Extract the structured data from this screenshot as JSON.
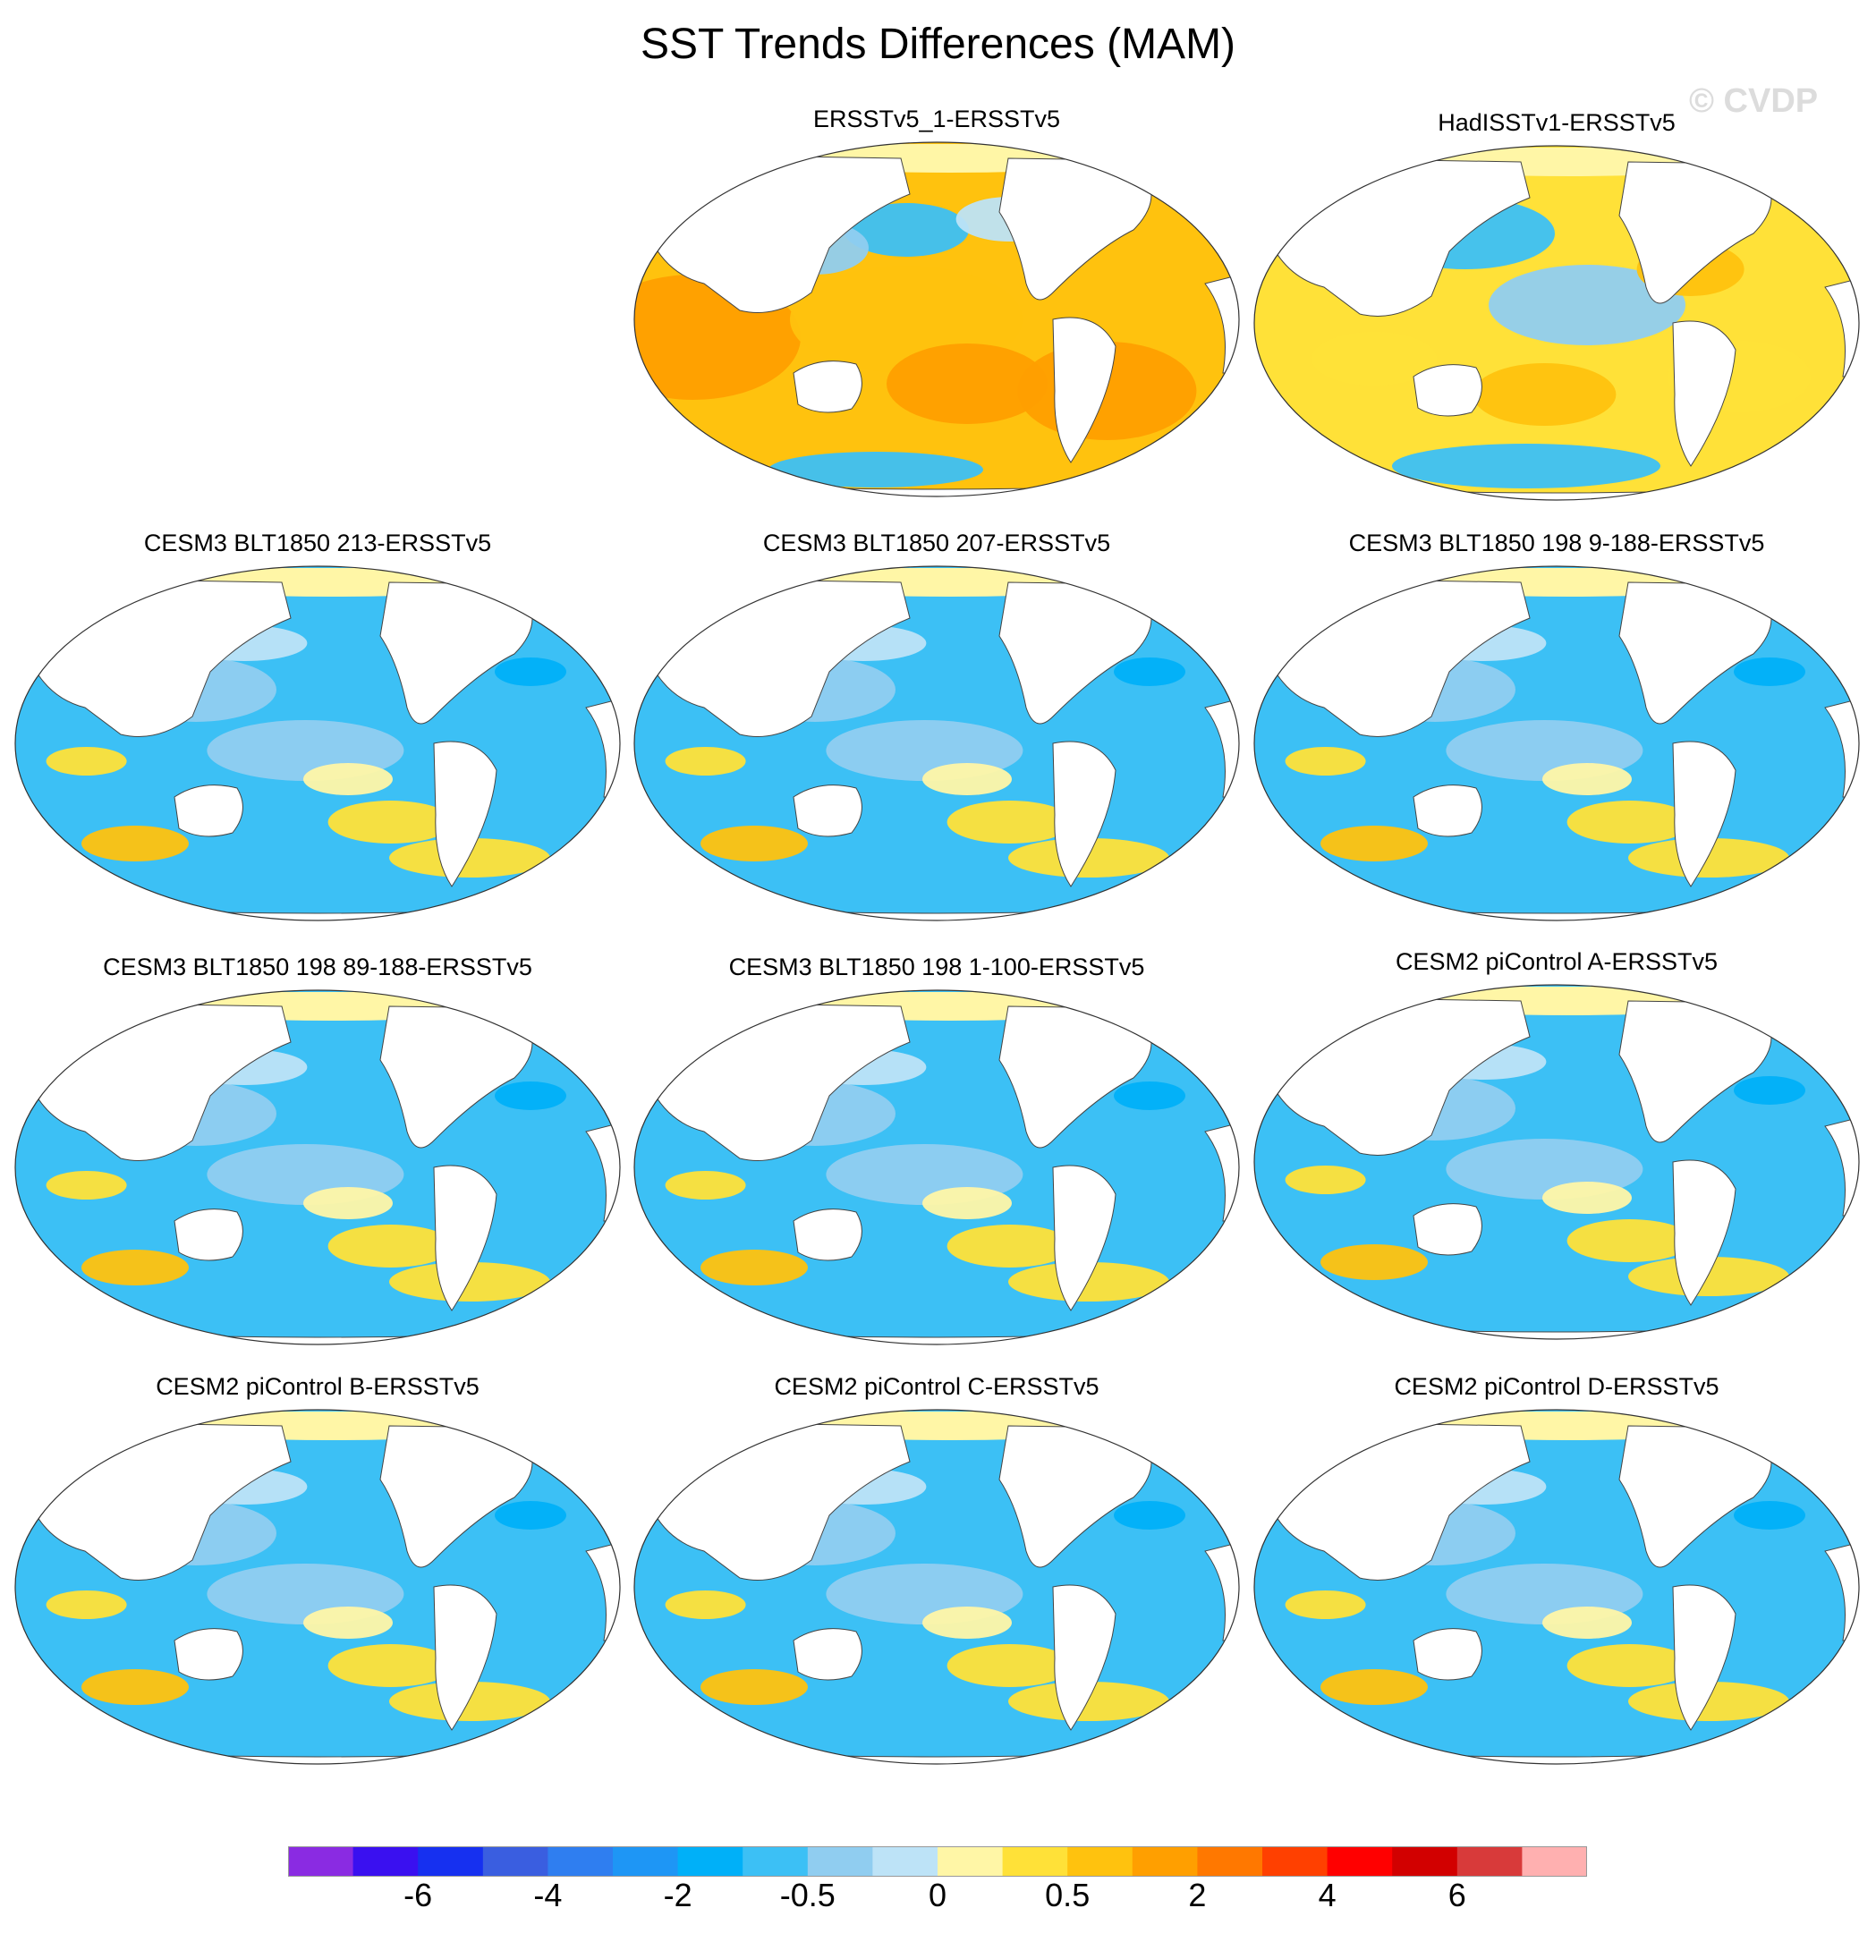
{
  "figure": {
    "title": "SST Trends Differences (MAM)",
    "watermark": "© CVDP"
  },
  "panels": [
    {
      "title": "ERSSTv5_1-ERSSTv5",
      "pattern": "warm"
    },
    {
      "title": "HadISSTv1-ERSSTv5",
      "pattern": "mixed"
    },
    {
      "title": "CESM3 BLT1850 213-ERSSTv5",
      "pattern": "cool"
    },
    {
      "title": "CESM3 BLT1850 207-ERSSTv5",
      "pattern": "cool"
    },
    {
      "title": "CESM3 BLT1850 198 9-188-ERSSTv5",
      "pattern": "cool"
    },
    {
      "title": "CESM3 BLT1850 198 89-188-ERSSTv5",
      "pattern": "cool"
    },
    {
      "title": "CESM3 BLT1850 198 1-100-ERSSTv5",
      "pattern": "cool"
    },
    {
      "title": "CESM2 piControl A-ERSSTv5",
      "pattern": "cool"
    },
    {
      "title": "CESM2 piControl B-ERSSTv5",
      "pattern": "cool"
    },
    {
      "title": "CESM2 piControl C-ERSSTv5",
      "pattern": "cool"
    },
    {
      "title": "CESM2 piControl D-ERSSTv5",
      "pattern": "cool"
    }
  ],
  "colorbar": {
    "colors": [
      "#8a2be2",
      "#3a10f0",
      "#1630f0",
      "#3a5ee0",
      "#2f7ef0",
      "#1e96f5",
      "#00b0f8",
      "#3cc0f5",
      "#90cdf0",
      "#bde3f7",
      "#fff6a6",
      "#ffe138",
      "#ffc20e",
      "#ff9f00",
      "#ff7800",
      "#ff4000",
      "#ff0000",
      "#d20000",
      "#d83a3a",
      "#ffb0b0"
    ],
    "labels": [
      {
        "text": "-6",
        "boundary": 2
      },
      {
        "text": "-4",
        "boundary": 4
      },
      {
        "text": "-2",
        "boundary": 6
      },
      {
        "text": "-0.5",
        "boundary": 8
      },
      {
        "text": "0",
        "boundary": 10
      },
      {
        "text": "0.5",
        "boundary": 12
      },
      {
        "text": "2",
        "boundary": 14
      },
      {
        "text": "4",
        "boundary": 16
      },
      {
        "text": "6",
        "boundary": 18
      }
    ]
  }
}
